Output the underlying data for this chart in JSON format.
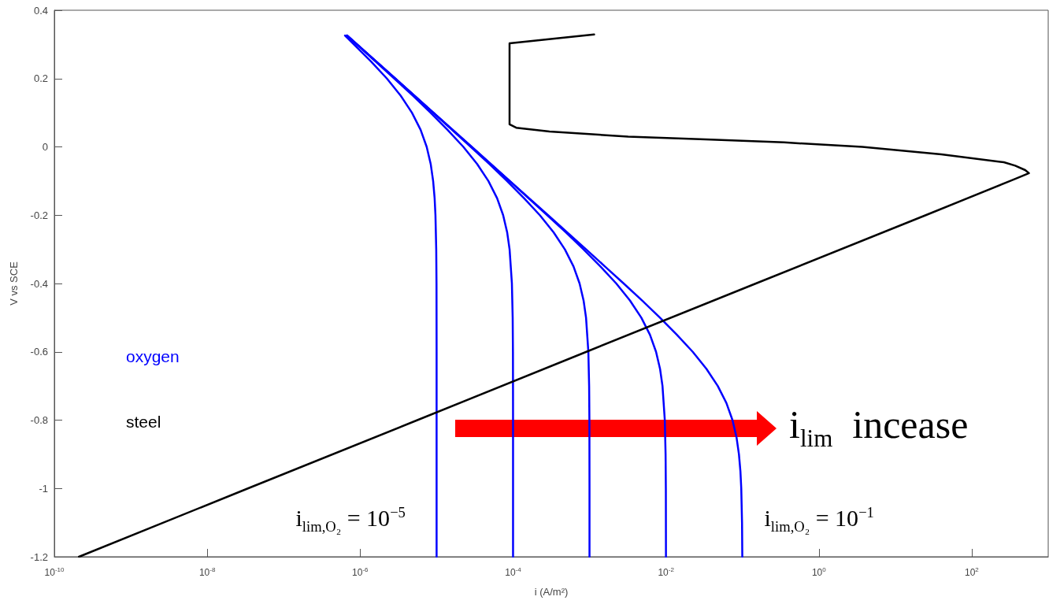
{
  "chart_data": {
    "type": "line",
    "xlabel": "i (A/m²)",
    "ylabel": "V vs SCE",
    "log": "x",
    "grid": false,
    "legend": "left",
    "marker": "none",
    "line_style": "solid",
    "xlim": [
      1e-10,
      1000
    ],
    "ylim": [
      -1.2,
      0.4
    ],
    "xticks": [
      {
        "value": 1e-10,
        "label": "10$^{-10}$"
      },
      {
        "value": 1e-08,
        "label": "10$^{-8}$"
      },
      {
        "value": 1e-06,
        "label": "10$^{-6}$"
      },
      {
        "value": 0.0001,
        "label": "10$^{-4}$"
      },
      {
        "value": 0.01,
        "label": "10$^{-2}$"
      },
      {
        "value": 1,
        "label": "10$^{0}$"
      },
      {
        "value": 100,
        "label": "10$^{2}$"
      }
    ],
    "yticks": [
      -1.2,
      -1,
      -0.8,
      -0.6,
      -0.4,
      -0.2,
      0,
      0.2,
      0.4
    ],
    "annotations": [
      "i$_{lim,O₂}$ = 10$^{−5}$",
      "i$_{lim,O₂}$ = 10$^{−1}$",
      "i$_{lim}$  incease"
    ],
    "series": [
      {
        "name": "oxygen",
        "color": "#0000ff",
        "x": [
          6.33e-07,
          1.39e-06,
          2.24e-06,
          3.39e-06,
          4.76e-06,
          6.18e-06,
          7.42e-06,
          8.37e-06,
          9.01e-06,
          9.42e-06,
          9.66e-06,
          9.89e-06,
          9.97e-06,
          1e-05,
          1e-05
        ],
        "values": [
          0.326,
          0.25,
          0.2,
          0.15,
          0.1,
          0.05,
          0,
          -0.05,
          -0.1,
          -0.15,
          -0.2,
          -0.3,
          -0.4,
          -0.6,
          -1.2
        ]
      },
      {
        "color": "#0000ff",
        "x": [
          6.71e-07,
          1.59e-06,
          2.8e-06,
          4.88e-06,
          8.34e-06,
          1.39e-05,
          2.24e-05,
          3.39e-05,
          4.76e-05,
          6.18e-05,
          7.42e-05,
          8.37e-05,
          9.01e-05,
          9.66e-05,
          9.89e-05,
          9.97e-05,
          0.0001,
          0.0001
        ],
        "values": [
          0.326,
          0.25,
          0.2,
          0.15,
          0.1,
          0.05,
          0,
          -0.05,
          -0.1,
          -0.15,
          -0.2,
          -0.25,
          -0.3,
          -0.4,
          -0.5,
          -0.6,
          -0.8,
          -1.2
        ]
      },
      {
        "color": "#0000ff",
        "x": [
          6.76e-07,
          1.62e-06,
          2.87e-06,
          5.1e-06,
          9.02e-06,
          1.59e-05,
          2.8e-05,
          4.88e-05,
          8.34e-05,
          0.000139,
          0.000224,
          0.000339,
          0.000476,
          0.000618,
          0.000742,
          0.000837,
          0.000901,
          0.000966,
          0.000989,
          0.000997,
          0.001,
          0.001
        ],
        "values": [
          0.326,
          0.25,
          0.2,
          0.15,
          0.1,
          0.05,
          0,
          -0.05,
          -0.1,
          -0.15,
          -0.2,
          -0.25,
          -0.3,
          -0.35,
          -0.4,
          -0.45,
          -0.5,
          -0.6,
          -0.7,
          -0.8,
          -1,
          -1.2
        ]
      },
      {
        "color": "#0000ff",
        "x": [
          6.76e-07,
          2.88e-06,
          9.09e-06,
          2.87e-05,
          9.02e-05,
          0.000159,
          0.00028,
          0.000488,
          0.000834,
          0.00139,
          0.00224,
          0.00339,
          0.00476,
          0.00618,
          0.00742,
          0.00837,
          0.00901,
          0.00966,
          0.00989,
          0.00997,
          0.01
        ],
        "values": [
          0.326,
          0.2,
          0.1,
          0,
          -0.1,
          -0.15,
          -0.2,
          -0.25,
          -0.3,
          -0.35,
          -0.4,
          -0.45,
          -0.5,
          -0.55,
          -0.6,
          -0.65,
          -0.7,
          -0.8,
          -0.9,
          -1,
          -1.2
        ]
      },
      {
        "color": "#0000ff",
        "x": [
          6.76e-07,
          2.88e-06,
          9.1e-06,
          2.88e-05,
          9.09e-05,
          0.000287,
          0.000902,
          0.00159,
          0.0028,
          0.00488,
          0.00834,
          0.0139,
          0.0224,
          0.0339,
          0.0476,
          0.0618,
          0.0742,
          0.0837,
          0.0901,
          0.0942,
          0.0966,
          0.0989,
          0.0997
        ],
        "values": [
          0.326,
          0.2,
          0.1,
          0,
          -0.1,
          -0.2,
          -0.3,
          -0.35,
          -0.4,
          -0.45,
          -0.5,
          -0.55,
          -0.6,
          -0.65,
          -0.7,
          -0.75,
          -0.8,
          -0.85,
          -0.9,
          -0.95,
          -1,
          -1.1,
          -1.2
        ]
      },
      {
        "name": "steel",
        "color": "#000000",
        "x": [
          2.1e-10,
          3.4e-08,
          5.6e-06,
          0.00091,
          0.15,
          25,
          316,
          460,
          560,
          500,
          370,
          263,
          40,
          3.7,
          0.35,
          0.033,
          0.0032,
          0.0003,
          0.00011,
          9e-05,
          9e-05,
          0.00115
        ],
        "values": [
          -1.2,
          -1,
          -0.8,
          -0.6,
          -0.4,
          -0.2,
          -0.1,
          -0.085,
          -0.077,
          -0.068,
          -0.055,
          -0.045,
          -0.022,
          0,
          0.013,
          0.022,
          0.03,
          0.045,
          0.056,
          0.066,
          0.303,
          0.329
        ]
      }
    ]
  }
}
